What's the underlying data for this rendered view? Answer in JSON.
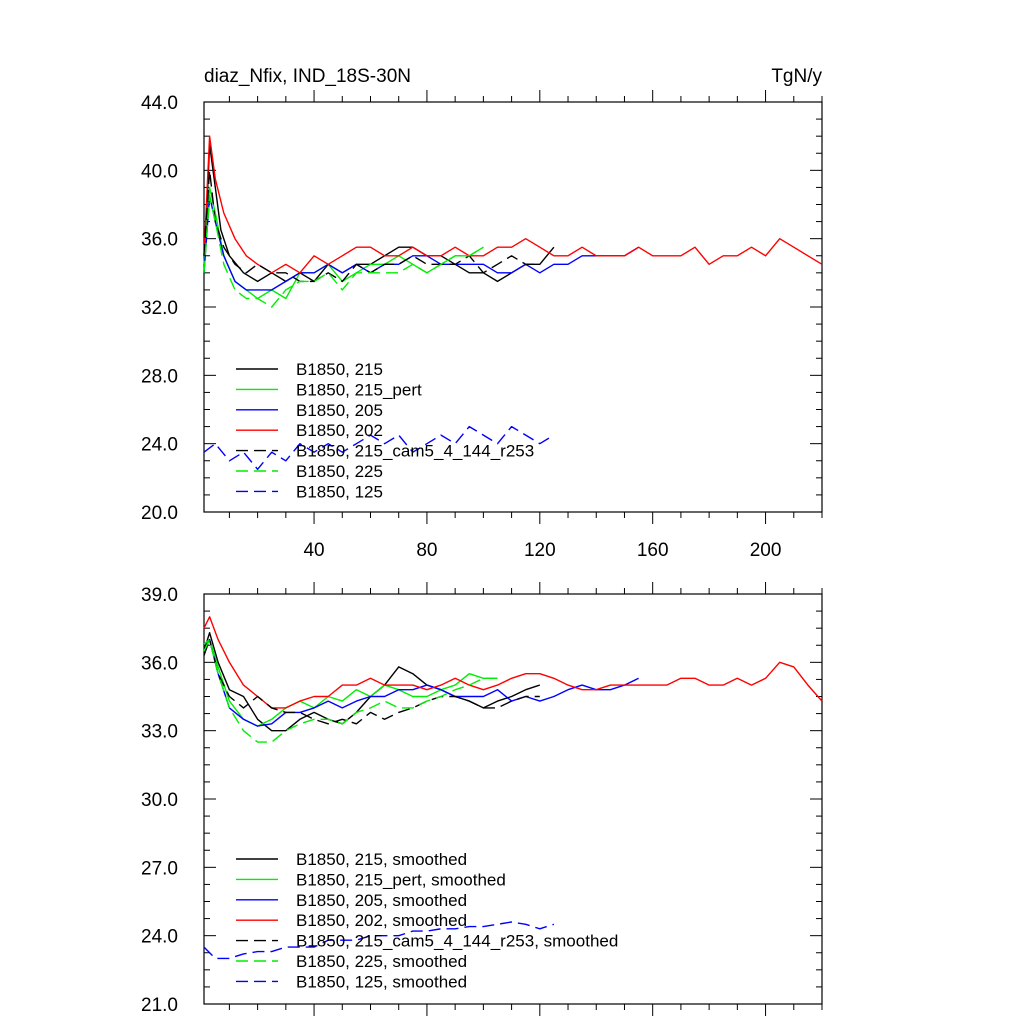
{
  "chart_data": [
    {
      "type": "line",
      "title": "diaz_Nfix, IND_18S-30N",
      "units": "TgN/y",
      "xlabel": "",
      "ylabel": "",
      "xlim": [
        1,
        220
      ],
      "ylim": [
        20,
        44
      ],
      "yticks": [
        20,
        24,
        28,
        32,
        36,
        40,
        44
      ],
      "ytick_labels": [
        "20.0",
        "24.0",
        "28.0",
        "32.0",
        "36.0",
        "40.0",
        "44.0"
      ],
      "xticks": [
        40,
        80,
        120,
        160,
        200
      ],
      "xtick_labels": [
        "40",
        "80",
        "120",
        "160",
        "200"
      ],
      "series": [
        {
          "name": "B1850, 215",
          "color": "#000000",
          "dash": "solid",
          "x": [
            1,
            3,
            5,
            7,
            10,
            15,
            20,
            25,
            30,
            35,
            40,
            45,
            50,
            55,
            60,
            65,
            70,
            75,
            80,
            85,
            90,
            95,
            100,
            105,
            110,
            115,
            120,
            125
          ],
          "y": [
            34.0,
            41.5,
            39.0,
            36.5,
            35.0,
            34.0,
            33.5,
            34.0,
            33.5,
            34.0,
            33.5,
            34.5,
            34.0,
            34.5,
            34.5,
            35.0,
            35.5,
            35.5,
            35.0,
            35.0,
            34.5,
            34.0,
            34.0,
            33.5,
            34.0,
            34.5,
            34.5,
            35.5
          ]
        },
        {
          "name": "B1850, 215_pert",
          "color": "#00ee00",
          "dash": "solid",
          "x": [
            1,
            3,
            5,
            8,
            12,
            16,
            20,
            25,
            30,
            35,
            40,
            45,
            50,
            55,
            60,
            65,
            70,
            75,
            80,
            85,
            90,
            95,
            100
          ],
          "y": [
            34.5,
            39.0,
            37.5,
            35.0,
            33.5,
            33.0,
            32.5,
            33.0,
            32.5,
            34.0,
            34.0,
            34.5,
            33.5,
            34.0,
            34.5,
            34.5,
            35.0,
            34.5,
            34.0,
            34.5,
            35.0,
            35.0,
            35.5
          ]
        },
        {
          "name": "B1850, 205",
          "color": "#0000ff",
          "dash": "solid",
          "x": [
            1,
            3,
            5,
            8,
            12,
            16,
            20,
            25,
            30,
            35,
            40,
            45,
            50,
            55,
            60,
            65,
            70,
            75,
            80,
            85,
            90,
            95,
            100,
            105,
            110,
            115,
            120,
            125,
            130,
            135,
            140,
            145,
            150,
            155
          ],
          "y": [
            34.0,
            38.5,
            37.0,
            35.0,
            33.5,
            33.0,
            33.0,
            33.0,
            33.5,
            34.0,
            34.0,
            34.5,
            34.0,
            34.5,
            34.0,
            34.5,
            34.5,
            35.0,
            35.0,
            34.5,
            34.5,
            34.5,
            34.5,
            34.0,
            34.0,
            34.5,
            34.0,
            34.5,
            34.5,
            35.0,
            35.0,
            35.0,
            35.0,
            35.5
          ]
        },
        {
          "name": "B1850, 202",
          "color": "#ff0000",
          "dash": "solid",
          "x": [
            1,
            3,
            5,
            8,
            12,
            16,
            20,
            25,
            30,
            35,
            40,
            45,
            50,
            55,
            60,
            65,
            70,
            75,
            80,
            85,
            90,
            95,
            100,
            105,
            110,
            115,
            120,
            125,
            130,
            135,
            140,
            145,
            150,
            155,
            160,
            165,
            170,
            175,
            180,
            185,
            190,
            195,
            200,
            205,
            210,
            215,
            220
          ],
          "y": [
            35.0,
            42.0,
            39.5,
            37.5,
            36.0,
            35.0,
            34.5,
            34.0,
            34.5,
            34.0,
            35.0,
            34.5,
            35.0,
            35.5,
            35.5,
            35.0,
            35.0,
            35.5,
            35.0,
            35.0,
            35.5,
            35.0,
            35.0,
            35.5,
            35.5,
            36.0,
            35.5,
            35.0,
            35.0,
            35.5,
            35.0,
            35.0,
            35.0,
            35.5,
            35.0,
            35.0,
            35.0,
            35.5,
            34.5,
            35.0,
            35.0,
            35.5,
            35.0,
            36.0,
            35.5,
            35.0,
            34.5
          ]
        },
        {
          "name": "B1850, 215_cam5_4_144_r253",
          "color": "#000000",
          "dash": "dashed",
          "x": [
            1,
            3,
            5,
            8,
            12,
            16,
            20,
            25,
            30,
            35,
            40,
            45,
            50,
            55,
            60,
            65,
            70,
            75,
            80,
            85,
            90,
            95,
            100,
            105,
            110,
            115,
            120
          ],
          "y": [
            35.0,
            40.0,
            37.0,
            35.5,
            34.5,
            34.0,
            34.5,
            34.0,
            34.0,
            33.5,
            33.5,
            34.0,
            33.5,
            34.5,
            34.0,
            34.5,
            34.5,
            35.0,
            34.5,
            34.5,
            34.5,
            35.0,
            34.0,
            34.5,
            35.0,
            34.5,
            34.5
          ]
        },
        {
          "name": "B1850, 225",
          "color": "#00ee00",
          "dash": "dashed",
          "x": [
            1,
            3,
            5,
            8,
            12,
            16,
            20,
            25,
            30,
            35,
            40,
            45,
            50,
            55,
            60,
            65,
            70,
            75,
            80,
            85,
            90,
            95,
            100
          ],
          "y": [
            34.0,
            38.5,
            37.0,
            34.5,
            33.0,
            32.5,
            32.5,
            32.0,
            33.0,
            33.5,
            33.5,
            34.0,
            33.0,
            34.0,
            34.0,
            34.0,
            34.0,
            34.5,
            34.0,
            34.5,
            35.0,
            35.0,
            35.5
          ]
        },
        {
          "name": "B1850, 125",
          "color": "#0000ff",
          "dash": "dashed",
          "x": [
            1,
            5,
            10,
            15,
            20,
            25,
            30,
            35,
            40,
            45,
            50,
            55,
            60,
            65,
            70,
            75,
            80,
            85,
            90,
            95,
            100,
            105,
            110,
            115,
            120,
            125
          ],
          "y": [
            23.5,
            24.0,
            23.0,
            23.5,
            22.5,
            23.5,
            23.0,
            24.0,
            23.5,
            24.0,
            23.5,
            24.0,
            24.5,
            24.0,
            24.5,
            23.5,
            24.0,
            24.5,
            24.0,
            25.0,
            24.5,
            24.0,
            25.0,
            24.5,
            24.0,
            24.5
          ]
        }
      ]
    },
    {
      "type": "line",
      "title": "",
      "xlabel": "",
      "ylabel": "",
      "xlim": [
        1,
        220
      ],
      "ylim": [
        21,
        39
      ],
      "yticks": [
        21,
        24,
        27,
        30,
        33,
        36,
        39
      ],
      "ytick_labels": [
        "21.0",
        "24.0",
        "27.0",
        "30.0",
        "33.0",
        "36.0",
        "39.0"
      ],
      "xticks": [
        40,
        80,
        120,
        160,
        200
      ],
      "series": [
        {
          "name": "B1850, 215, smoothed",
          "color": "#000000",
          "dash": "solid",
          "x": [
            1,
            3,
            6,
            10,
            15,
            20,
            25,
            30,
            35,
            40,
            45,
            50,
            55,
            60,
            65,
            70,
            75,
            80,
            85,
            90,
            95,
            100,
            105,
            110,
            115,
            120
          ],
          "y": [
            36.5,
            37.3,
            36.0,
            34.8,
            34.5,
            33.5,
            33.0,
            33.0,
            33.5,
            33.8,
            33.5,
            33.3,
            33.8,
            34.5,
            35.0,
            35.8,
            35.5,
            35.0,
            34.8,
            34.5,
            34.3,
            34.0,
            34.3,
            34.5,
            34.8,
            35.0
          ]
        },
        {
          "name": "B1850, 215_pert, smoothed",
          "color": "#00ee00",
          "dash": "solid",
          "x": [
            1,
            3,
            6,
            10,
            15,
            20,
            25,
            30,
            35,
            40,
            45,
            50,
            55,
            60,
            65,
            70,
            75,
            80,
            85,
            90,
            95,
            100,
            105
          ],
          "y": [
            36.8,
            37.0,
            35.8,
            34.3,
            33.5,
            33.2,
            33.5,
            34.0,
            34.3,
            34.0,
            34.5,
            34.3,
            34.8,
            34.5,
            35.0,
            34.8,
            34.5,
            34.5,
            34.8,
            35.0,
            35.5,
            35.3,
            35.3
          ]
        },
        {
          "name": "B1850, 205, smoothed",
          "color": "#0000ff",
          "dash": "solid",
          "x": [
            1,
            3,
            6,
            10,
            15,
            20,
            25,
            30,
            35,
            40,
            45,
            50,
            55,
            60,
            65,
            70,
            75,
            80,
            85,
            90,
            95,
            100,
            105,
            110,
            115,
            120,
            125,
            130,
            135,
            140,
            145,
            150,
            155
          ],
          "y": [
            36.5,
            37.0,
            35.5,
            34.0,
            33.5,
            33.2,
            33.3,
            33.8,
            33.8,
            34.0,
            34.3,
            34.0,
            34.3,
            34.5,
            34.5,
            34.8,
            34.8,
            35.0,
            34.8,
            34.5,
            34.5,
            34.5,
            34.8,
            34.3,
            34.5,
            34.3,
            34.5,
            34.8,
            35.0,
            34.8,
            34.8,
            35.0,
            35.3
          ]
        },
        {
          "name": "B1850, 202, smoothed",
          "color": "#ff0000",
          "dash": "solid",
          "x": [
            1,
            3,
            6,
            10,
            15,
            20,
            25,
            30,
            35,
            40,
            45,
            50,
            55,
            60,
            65,
            70,
            75,
            80,
            85,
            90,
            95,
            100,
            105,
            110,
            115,
            120,
            125,
            130,
            135,
            140,
            145,
            150,
            155,
            160,
            165,
            170,
            175,
            180,
            185,
            190,
            195,
            200,
            205,
            210,
            215,
            220
          ],
          "y": [
            37.5,
            38.0,
            37.0,
            36.0,
            35.0,
            34.5,
            34.0,
            34.0,
            34.3,
            34.5,
            34.5,
            35.0,
            35.0,
            35.3,
            35.0,
            35.0,
            35.0,
            34.8,
            35.0,
            35.3,
            35.0,
            34.8,
            35.0,
            35.3,
            35.5,
            35.5,
            35.3,
            35.0,
            34.8,
            34.8,
            35.0,
            35.0,
            35.0,
            35.0,
            35.0,
            35.3,
            35.3,
            35.0,
            35.0,
            35.3,
            35.0,
            35.3,
            36.0,
            35.8,
            35.0,
            34.3
          ]
        },
        {
          "name": "B1850, 215_cam5_4_144_r253, smoothed",
          "color": "#000000",
          "dash": "dashed",
          "x": [
            1,
            3,
            6,
            10,
            15,
            20,
            25,
            30,
            35,
            40,
            45,
            50,
            55,
            60,
            65,
            70,
            75,
            80,
            85,
            90,
            95,
            100,
            105,
            110,
            115,
            120
          ],
          "y": [
            36.3,
            37.0,
            35.5,
            34.5,
            34.0,
            34.5,
            34.0,
            33.8,
            33.8,
            33.5,
            33.3,
            33.5,
            33.3,
            33.8,
            33.5,
            33.8,
            34.0,
            34.3,
            34.5,
            34.5,
            34.3,
            34.0,
            34.0,
            34.3,
            34.5,
            34.5
          ]
        },
        {
          "name": "B1850, 225, smoothed",
          "color": "#00ee00",
          "dash": "dashed",
          "x": [
            1,
            3,
            6,
            10,
            15,
            20,
            25,
            30,
            35,
            40,
            45,
            50,
            55,
            60,
            65,
            70,
            75,
            80,
            85,
            90,
            95,
            100,
            105
          ],
          "y": [
            36.5,
            37.0,
            35.5,
            34.0,
            33.0,
            32.5,
            32.5,
            33.0,
            33.3,
            33.5,
            33.5,
            33.3,
            33.8,
            34.0,
            34.3,
            34.0,
            34.0,
            34.3,
            34.5,
            34.8,
            35.0,
            35.3,
            35.3
          ]
        },
        {
          "name": "B1850, 125, smoothed",
          "color": "#0000ff",
          "dash": "dashed",
          "x": [
            1,
            5,
            10,
            15,
            20,
            25,
            30,
            35,
            40,
            45,
            50,
            55,
            60,
            65,
            70,
            75,
            80,
            85,
            90,
            95,
            100,
            105,
            110,
            115,
            120,
            125
          ],
          "y": [
            23.5,
            23.0,
            23.0,
            23.2,
            23.3,
            23.3,
            23.5,
            23.5,
            23.5,
            23.8,
            23.8,
            23.8,
            24.0,
            24.0,
            24.0,
            24.2,
            24.2,
            24.3,
            24.3,
            24.4,
            24.4,
            24.5,
            24.6,
            24.5,
            24.3,
            24.5
          ]
        }
      ]
    }
  ]
}
